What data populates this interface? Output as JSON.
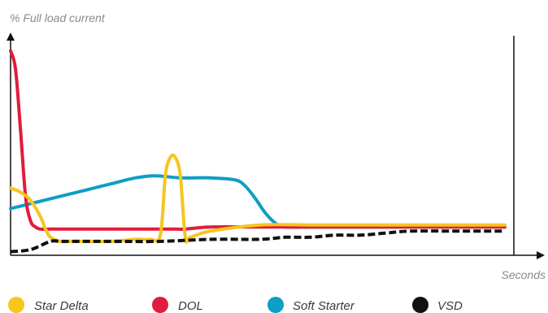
{
  "chart_data": {
    "type": "line",
    "title": "",
    "ylabel": "% Full load current",
    "xlabel": "Seconds",
    "xlim": [
      0,
      100
    ],
    "ylim": [
      0,
      100
    ],
    "grid": false,
    "legend_position": "bottom",
    "series": [
      {
        "name": "Star Delta",
        "color": "#f7c51e",
        "style": "solid",
        "x": [
          0,
          2,
          4,
          6,
          7,
          8,
          10,
          12,
          15,
          20,
          25,
          28,
          30,
          31,
          32,
          33,
          34,
          35,
          36,
          40,
          50,
          60,
          70,
          80,
          90,
          99
        ],
        "y": [
          32,
          30,
          26,
          18,
          12,
          8,
          6,
          6,
          6,
          6,
          7,
          7,
          9,
          38,
          47,
          47,
          38,
          8,
          8,
          11,
          14,
          14,
          14,
          14,
          14,
          14
        ]
      },
      {
        "name": "DOL",
        "color": "#e31b3c",
        "style": "solid",
        "x": [
          0,
          1,
          2,
          3,
          4,
          5,
          6,
          8,
          10,
          15,
          20,
          25,
          30,
          33,
          35,
          40,
          50,
          60,
          70,
          80,
          90,
          99
        ],
        "y": [
          99,
          90,
          60,
          28,
          16,
          13,
          12,
          12,
          12,
          12,
          12,
          12,
          12,
          12,
          12,
          13,
          13,
          13,
          13,
          13,
          13,
          13
        ]
      },
      {
        "name": "Soft Starter",
        "color": "#0e9ec6",
        "style": "solid",
        "x": [
          0,
          5,
          10,
          15,
          20,
          25,
          29,
          34,
          40,
          45,
          47,
          49,
          51,
          53,
          55,
          60,
          70,
          80,
          90,
          99
        ],
        "y": [
          22,
          25,
          28,
          31,
          34,
          37,
          38,
          37,
          37,
          36,
          33,
          27,
          20,
          15,
          13,
          13,
          13,
          13,
          13,
          13
        ]
      },
      {
        "name": "VSD",
        "color": "#111111",
        "style": "dashed",
        "x": [
          0,
          4,
          8,
          10,
          15,
          20,
          30,
          40,
          50,
          55,
          60,
          65,
          70,
          75,
          80,
          90,
          99
        ],
        "y": [
          1,
          2,
          6,
          6,
          6,
          6,
          6,
          7,
          7,
          8,
          8,
          9,
          9,
          10,
          11,
          11,
          11
        ]
      }
    ]
  }
}
